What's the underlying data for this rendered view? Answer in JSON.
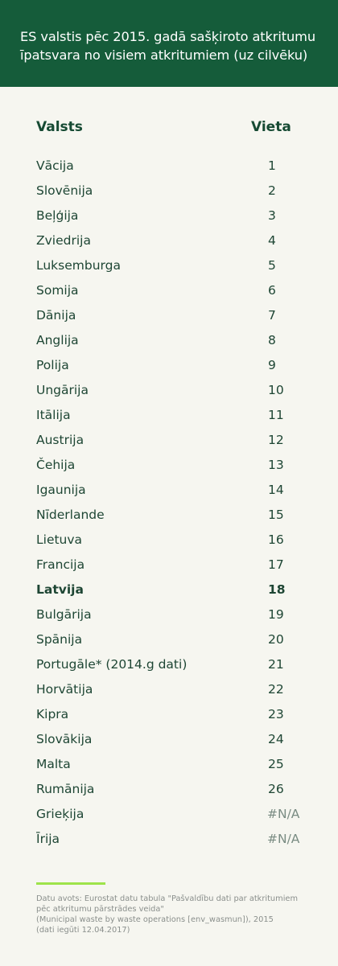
{
  "header": {
    "title_line1": "ES valstis pēc 2015. gadā sašķiroto atkritumu",
    "title_line2": "īpatsvara no visiem atkritumiem (uz cilvēku)"
  },
  "table": {
    "col_country": "Valsts",
    "col_rank": "Vieta",
    "rows": [
      {
        "country": "Vācija",
        "rank": "1"
      },
      {
        "country": "Slovēnija",
        "rank": "2"
      },
      {
        "country": "Beļģija",
        "rank": "3"
      },
      {
        "country": "Zviedrija",
        "rank": "4"
      },
      {
        "country": "Luksemburga",
        "rank": "5"
      },
      {
        "country": "Somija",
        "rank": "6"
      },
      {
        "country": "Dānija",
        "rank": "7"
      },
      {
        "country": "Anglija",
        "rank": "8"
      },
      {
        "country": "Polija",
        "rank": "9"
      },
      {
        "country": "Ungārija",
        "rank": "10"
      },
      {
        "country": "Itālija",
        "rank": "11"
      },
      {
        "country": "Austrija",
        "rank": "12"
      },
      {
        "country": "Čehija",
        "rank": "13"
      },
      {
        "country": "Igaunija",
        "rank": "14"
      },
      {
        "country": "Nīderlande",
        "rank": "15"
      },
      {
        "country": "Lietuva",
        "rank": "16"
      },
      {
        "country": "Francija",
        "rank": "17"
      },
      {
        "country": "Latvija",
        "rank": "18"
      },
      {
        "country": "Bulgārija",
        "rank": "19"
      },
      {
        "country": "Spānija",
        "rank": "20"
      },
      {
        "country": "Portugāle* (2014.g dati)",
        "rank": "21"
      },
      {
        "country": "Horvātija",
        "rank": "22"
      },
      {
        "country": "Kipra",
        "rank": "23"
      },
      {
        "country": "Slovākija",
        "rank": "24"
      },
      {
        "country": "Malta",
        "rank": "25"
      },
      {
        "country": "Rumānija",
        "rank": "26"
      },
      {
        "country": "Grieķija",
        "rank": "#N/A"
      },
      {
        "country": "Īrija",
        "rank": "#N/A"
      }
    ]
  },
  "footnote": {
    "line1": "Datu avots: Eurostat datu tabula \"Pašvaldību dati par atkritumiem",
    "line2": "pēc atkritumu pārstrādes veida\"",
    "line3": "(Municipal waste by waste operations [env_wasmun]), 2015",
    "line4": "(dati iegūti 12.04.2017)"
  },
  "colors": {
    "header_bg": "#155c3a",
    "text": "#1e4634",
    "accent_line": "#9ee34a",
    "background": "#f6f6f0"
  }
}
